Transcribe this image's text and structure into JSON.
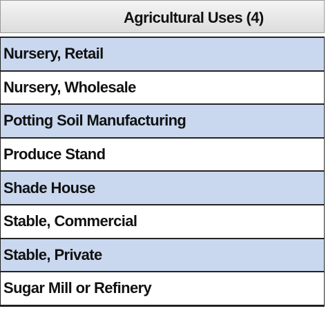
{
  "header": {
    "title": "Agricultural Uses (4)"
  },
  "table": {
    "rows": [
      "Nursery, Retail",
      "Nursery, Wholesale",
      "Potting Soil Manufacturing",
      "Produce Stand",
      "Shade House",
      "Stable, Commercial",
      "Stable, Private",
      "Sugar Mill or Refinery"
    ]
  }
}
